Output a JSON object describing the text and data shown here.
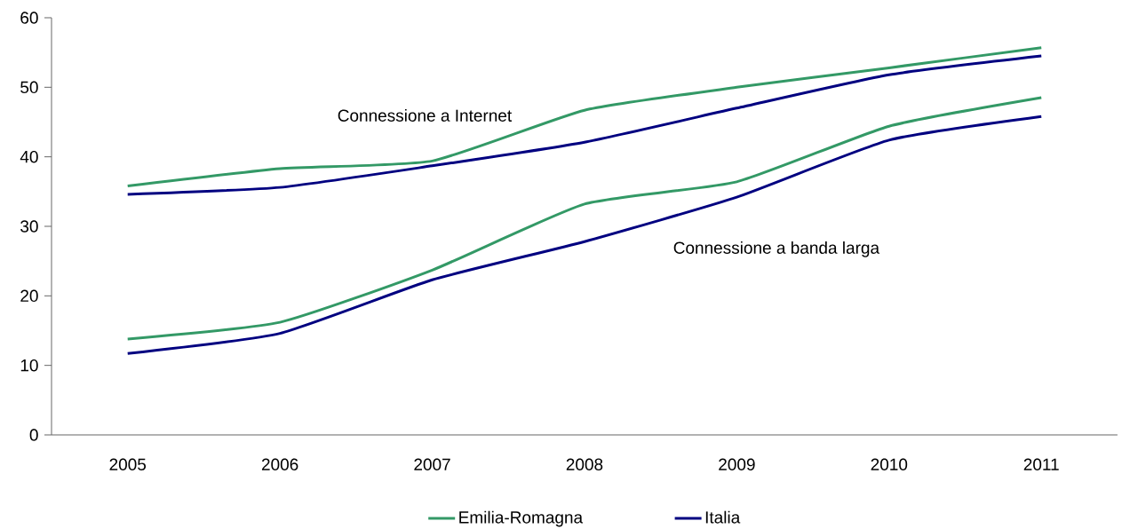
{
  "chart_data": {
    "type": "line",
    "categories": [
      "2005",
      "2006",
      "2007",
      "2008",
      "2009",
      "2010",
      "2011"
    ],
    "series": [
      {
        "name": "Emilia-Romagna",
        "color": "#339966",
        "values": [
          35.8,
          38.3,
          39.4,
          46.7,
          50.0,
          52.8,
          55.7
        ]
      },
      {
        "name": "Italia",
        "color": "#000080",
        "values": [
          34.6,
          35.6,
          38.7,
          42.1,
          47.0,
          51.8,
          54.5
        ]
      },
      {
        "color": "#339966",
        "values": [
          13.8,
          16.2,
          23.7,
          33.2,
          36.4,
          44.4,
          48.5
        ]
      },
      {
        "color": "#000080",
        "values": [
          11.7,
          14.6,
          22.3,
          27.8,
          34.2,
          42.4,
          45.8
        ]
      }
    ],
    "ylim": [
      0,
      60
    ],
    "yticks": [
      0,
      10,
      20,
      30,
      40,
      50,
      60
    ],
    "grid": false,
    "legend": "bottom",
    "marker": "none",
    "line_style": "solid",
    "annotations": [
      "Connessione a Internet",
      "Connessione a banda larga"
    ]
  }
}
